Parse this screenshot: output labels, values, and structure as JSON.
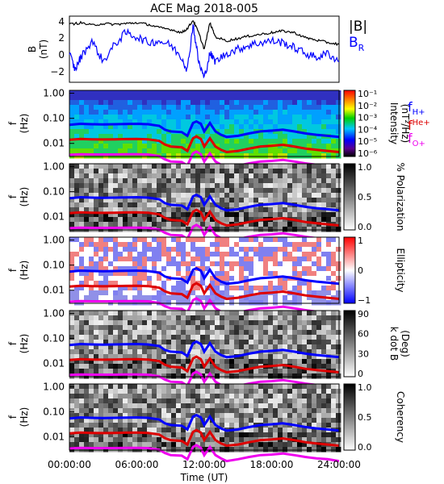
{
  "title": "ACE Mag 2018-005",
  "x_axis": {
    "label": "Time (UT)",
    "ticks": [
      "00:00:00",
      "06:00:00",
      "12:00:00",
      "18:00:00",
      "24:00:00"
    ],
    "range_hours": [
      0,
      24
    ]
  },
  "legend_right": {
    "mag": [
      {
        "label": "|B|",
        "color": "#000000"
      },
      {
        "label": "B",
        "sub": "R",
        "color": "#0000ff"
      }
    ],
    "freq": [
      {
        "label": "f",
        "sub": "H+",
        "color": "#0000ff"
      },
      {
        "label": "f",
        "sup": "He+",
        "color": "#dd0000"
      },
      {
        "label": "f",
        "sub": "O+",
        "color": "#ee00ee"
      }
    ]
  },
  "panels": {
    "mag": {
      "ylabel_main": "B",
      "ylabel_unit": "(nT)",
      "ticks": [
        "4",
        "2",
        "0",
        "−2"
      ]
    },
    "freq_ylabel_main": "f",
    "freq_ylabel_unit": "(Hz)",
    "freq_ticks": [
      "1.00",
      "0.10",
      "0.01"
    ],
    "spec": [
      {
        "id": "intensity",
        "bar_label": "Intensity",
        "bar_unit": "(nT²/Hz)",
        "bar_ticks": [
          "10⁻¹",
          "10⁻²",
          "10⁻³",
          "10⁻⁴",
          "10⁻⁵",
          "10⁻⁶"
        ],
        "colormap": "rainbow"
      },
      {
        "id": "polarization",
        "bar_label": "% Polarization",
        "bar_unit": "",
        "bar_ticks": [
          "1.0",
          "0.5",
          "0.0"
        ],
        "colormap": "gray"
      },
      {
        "id": "ellipticity",
        "bar_label": "Ellipticity",
        "bar_unit": "",
        "bar_ticks": [
          "1",
          "0",
          "−1"
        ],
        "colormap": "bwr"
      },
      {
        "id": "kdotb",
        "bar_label": "k dot B",
        "bar_unit": "(Deg)",
        "bar_ticks": [
          "90",
          "60",
          "30",
          "0"
        ],
        "colormap": "gray"
      },
      {
        "id": "coherency",
        "bar_label": "Coherency",
        "bar_unit": "",
        "bar_ticks": [
          "1.0",
          "0.5",
          "0.0"
        ],
        "colormap": "gray"
      }
    ]
  },
  "chart_data": {
    "type": "line",
    "title": "ACE Mag 2018-005",
    "xlabel": "Time (UT)",
    "xlim": [
      0,
      24
    ],
    "mag_series": [
      {
        "name": "|B|",
        "color": "#000000",
        "x": [
          0,
          1,
          2,
          3,
          4,
          5,
          6,
          7,
          8,
          9,
          10,
          10.5,
          11,
          11.5,
          12,
          12.5,
          13,
          14,
          15,
          16,
          17,
          18,
          19,
          20,
          21,
          22,
          23,
          24
        ],
        "y": [
          4.0,
          4.2,
          3.9,
          4.1,
          4.0,
          4.1,
          4.2,
          4.0,
          3.6,
          3.4,
          3.0,
          3.5,
          4.5,
          3.0,
          1.0,
          4.2,
          2.5,
          2.0,
          2.3,
          2.6,
          2.8,
          3.0,
          3.2,
          3.0,
          2.4,
          2.1,
          1.8,
          1.6
        ]
      },
      {
        "name": "B_R",
        "color": "#0000ff",
        "x": [
          0,
          0.5,
          1,
          2,
          3,
          4,
          5,
          6,
          7,
          8,
          9,
          10,
          10.5,
          11,
          11.5,
          12,
          12.5,
          13,
          14,
          15,
          16,
          17,
          18,
          19,
          20,
          21,
          22,
          23,
          24
        ],
        "y": [
          0.5,
          -1.5,
          0,
          2.0,
          -0.5,
          1.5,
          3.0,
          2.5,
          1.8,
          2.0,
          1.5,
          0,
          -1.5,
          4.0,
          -0.5,
          -2.5,
          0.5,
          -0.5,
          0.5,
          1.0,
          1.5,
          1.8,
          2.0,
          1.8,
          1.2,
          0.5,
          0,
          0.5,
          -0.5
        ]
      }
    ],
    "mag_ylim": [
      -3,
      5
    ],
    "freq_ylim_hz": [
      0.003,
      1.3
    ],
    "freq_lines": [
      {
        "name": "f_H+",
        "color": "#0000ff",
        "x": [
          0,
          1,
          2,
          3,
          4,
          5,
          6,
          7,
          8,
          8.5,
          9,
          10,
          10.5,
          11,
          11.3,
          11.7,
          12,
          12.5,
          13,
          13.5,
          14,
          15,
          16,
          17,
          18,
          19,
          20,
          21,
          22,
          23,
          24
        ],
        "y": [
          0.055,
          0.06,
          0.058,
          0.057,
          0.058,
          0.059,
          0.06,
          0.058,
          0.05,
          0.035,
          0.03,
          0.028,
          0.02,
          0.065,
          0.075,
          0.06,
          0.03,
          0.065,
          0.03,
          0.022,
          0.018,
          0.02,
          0.025,
          0.03,
          0.032,
          0.035,
          0.03,
          0.025,
          0.022,
          0.02,
          0.018
        ]
      },
      {
        "name": "f_He+",
        "color": "#dd0000",
        "x": [
          0,
          1,
          2,
          3,
          4,
          5,
          6,
          7,
          8,
          8.5,
          9,
          10,
          10.5,
          11,
          11.3,
          11.7,
          12,
          12.5,
          13,
          13.5,
          14,
          15,
          16,
          17,
          18,
          19,
          20,
          21,
          22,
          23,
          24
        ],
        "y": [
          0.014,
          0.015,
          0.0145,
          0.0143,
          0.0145,
          0.0148,
          0.015,
          0.0145,
          0.0125,
          0.009,
          0.0075,
          0.007,
          0.005,
          0.016,
          0.019,
          0.015,
          0.0075,
          0.016,
          0.0075,
          0.0055,
          0.0045,
          0.005,
          0.0062,
          0.0075,
          0.008,
          0.0088,
          0.0075,
          0.0062,
          0.0055,
          0.005,
          0.0045
        ]
      },
      {
        "name": "f_O+",
        "color": "#ee00ee",
        "x": [
          0,
          1,
          2,
          3,
          4,
          5,
          6,
          7,
          8,
          8.5,
          9,
          10,
          10.5,
          11,
          11.3,
          11.7,
          12,
          12.5,
          13,
          13.5,
          14,
          15,
          16,
          17,
          18,
          19,
          20,
          21,
          22,
          23,
          24
        ],
        "y": [
          0.0035,
          0.0037,
          0.0036,
          0.0036,
          0.0036,
          0.0037,
          0.0037,
          0.0036,
          0.0031,
          0.0023,
          0.0019,
          0.0018,
          0.0013,
          0.004,
          0.0047,
          0.0037,
          0.0019,
          0.004,
          0.0019,
          0.0014,
          0.0011,
          0.0013,
          0.0016,
          0.0019,
          0.002,
          0.0022,
          0.0019,
          0.0016,
          0.0014,
          0.0013,
          0.0011
        ]
      }
    ]
  }
}
